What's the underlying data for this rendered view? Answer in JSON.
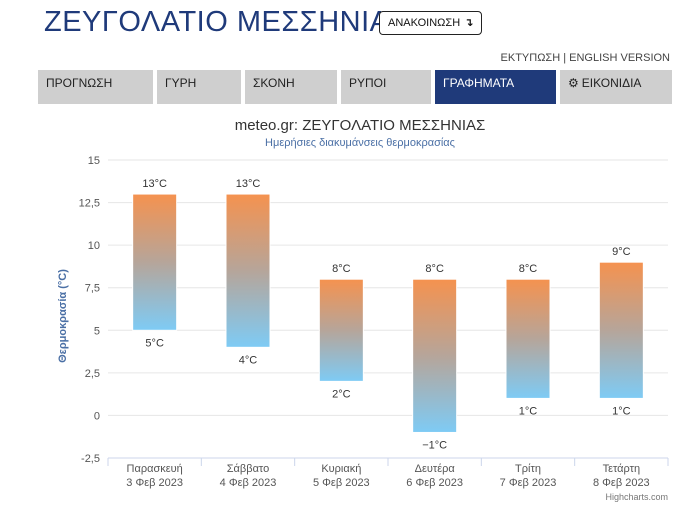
{
  "header": {
    "title": "ΖΕΥΓΟΛΑΤΙΟ ΜΕΣΣΗΝΙΑΣ",
    "announcement_label": "ΑΝΑΚΟΙΝΩΣΗ",
    "announcement_icon": "arrow-down-icon",
    "print_label": "ΕΚΤΥΠΩΣΗ",
    "separator": " | ",
    "english_label": "ENGLISH VERSION"
  },
  "nav": {
    "tabs": [
      {
        "label": "ΠΡΟΓΝΩΣΗ",
        "active": false
      },
      {
        "label": "ΓΥΡΗ",
        "active": false
      },
      {
        "label": "ΣΚΟΝΗ",
        "active": false
      },
      {
        "label": "ΡΥΠΟΙ",
        "active": false
      },
      {
        "label": "ΓΡΑΦΗΜΑΤΑ",
        "active": true
      },
      {
        "label": "ΕΙΚΟΝΙΔΙΑ",
        "active": false,
        "icon": "gear-icon"
      }
    ],
    "active_color": "#1f3a7a",
    "inactive_color": "#cfcfcf"
  },
  "chart_data": {
    "type": "columnrange",
    "title": "meteo.gr: ΖΕΥΓΟΛΑΤΙΟ ΜΕΣΣΗΝΙΑΣ",
    "subtitle": "Ημερήσιες διακυμάνσεις θερμοκρασίας",
    "ylabel": "Θερμοκρασία (°C)",
    "xlabel": "",
    "ylim": [
      -2.5,
      15
    ],
    "yticks": [
      "-2,5",
      "0",
      "2,5",
      "5",
      "7,5",
      "10",
      "12,5",
      "15"
    ],
    "grid": true,
    "categories": [
      {
        "day": "Παρασκευή",
        "date": "3 Φεβ 2023"
      },
      {
        "day": "Σάββατο",
        "date": "4 Φεβ 2023"
      },
      {
        "day": "Κυριακή",
        "date": "5 Φεβ 2023"
      },
      {
        "day": "Δευτέρα",
        "date": "6 Φεβ 2023"
      },
      {
        "day": "Τρίτη",
        "date": "7 Φεβ 2023"
      },
      {
        "day": "Τετάρτη",
        "date": "8 Φεβ 2023"
      }
    ],
    "series": [
      {
        "low": [
          5,
          4,
          2,
          -1,
          1,
          1
        ],
        "high": [
          13,
          13,
          8,
          8,
          8,
          9
        ],
        "low_labels": [
          "5°C",
          "4°C",
          "2°C",
          "−1°C",
          "1°C",
          "1°C"
        ],
        "high_labels": [
          "13°C",
          "13°C",
          "8°C",
          "8°C",
          "8°C",
          "9°C"
        ]
      }
    ],
    "colors": {
      "warm": "#f5924f",
      "cool": "#7ecbf5",
      "title": "#333333",
      "subtitle": "#4a6fa5",
      "axis_title": "#4a6fa5"
    },
    "credits": "Highcharts.com"
  }
}
